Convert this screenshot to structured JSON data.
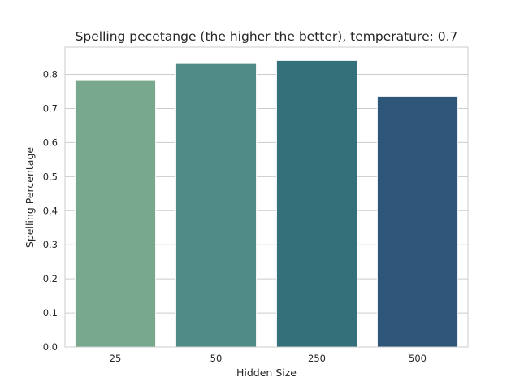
{
  "chart_data": {
    "type": "bar",
    "title": "Spelling pecetange (the higher the better), temperature: 0.7",
    "xlabel": "Hidden Size",
    "ylabel": "Spelling Percentage",
    "categories": [
      "25",
      "50",
      "250",
      "500"
    ],
    "values": [
      0.782,
      0.832,
      0.841,
      0.736
    ],
    "colors": [
      "#78a98e",
      "#508b85",
      "#337079",
      "#2e5678"
    ],
    "ylim": [
      0,
      0.88
    ],
    "yticks": [
      "0.0",
      "0.1",
      "0.2",
      "0.3",
      "0.4",
      "0.5",
      "0.6",
      "0.7",
      "0.8"
    ],
    "grid": true,
    "legend": "none"
  }
}
